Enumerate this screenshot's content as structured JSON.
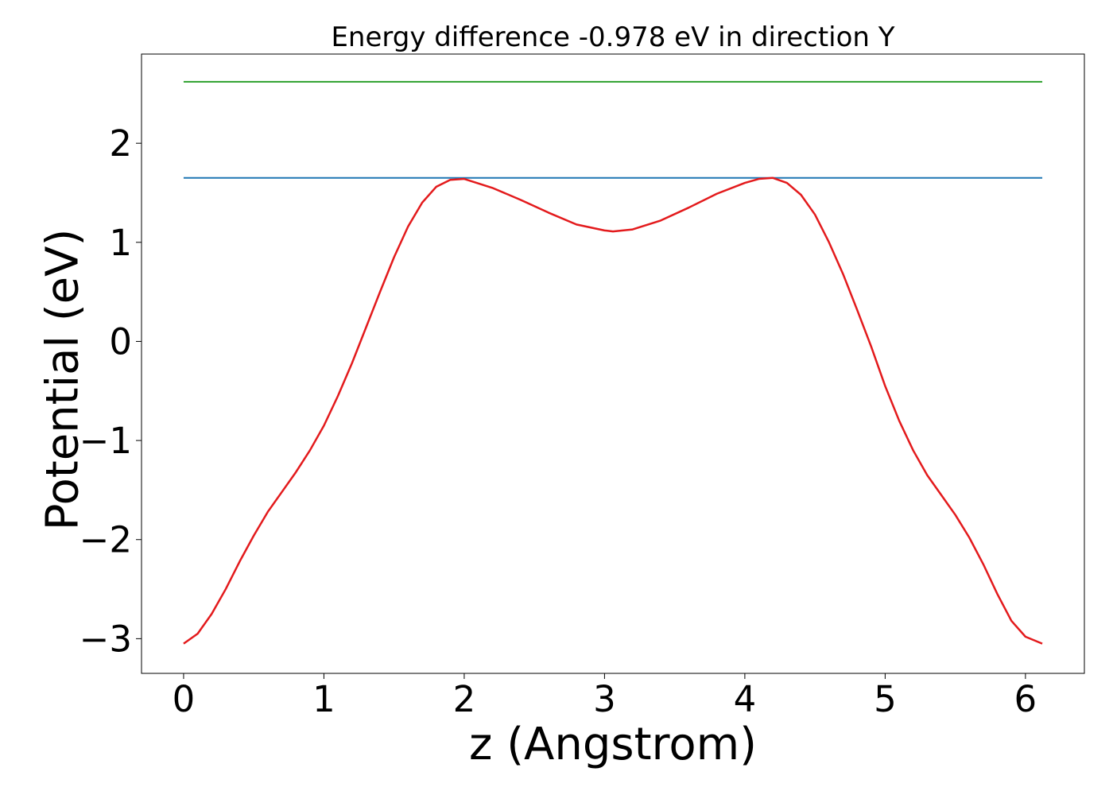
{
  "chart_data": {
    "type": "line",
    "title": "Energy difference -0.978 eV in direction Y",
    "xlabel": "z (Angstrom)",
    "ylabel": "Potential (eV)",
    "xlim": [
      -0.3,
      6.42
    ],
    "ylim": [
      -3.35,
      2.9
    ],
    "xticks": [
      0,
      1,
      2,
      3,
      4,
      5,
      6
    ],
    "yticks": [
      -3,
      -2,
      -1,
      0,
      1,
      2
    ],
    "xtick_labels": [
      "0",
      "1",
      "2",
      "3",
      "4",
      "5",
      "6"
    ],
    "ytick_labels": [
      "−3",
      "−2",
      "−1",
      "0",
      "1",
      "2"
    ],
    "grid": false,
    "series": [
      {
        "color": "#2ca02c",
        "x": [
          0,
          6.12
        ],
        "y": [
          2.62,
          2.62
        ]
      },
      {
        "color": "#1f77b4",
        "x": [
          0,
          6.12
        ],
        "y": [
          1.65,
          1.65
        ]
      },
      {
        "color": "#e31a1c",
        "x": [
          0,
          0.1,
          0.2,
          0.3,
          0.4,
          0.5,
          0.6,
          0.7,
          0.8,
          0.9,
          1.0,
          1.1,
          1.2,
          1.3,
          1.4,
          1.5,
          1.6,
          1.7,
          1.8,
          1.9,
          2.0,
          2.2,
          2.4,
          2.6,
          2.8,
          3.0,
          3.06,
          3.2,
          3.4,
          3.6,
          3.8,
          4.0,
          4.1,
          4.2,
          4.3,
          4.4,
          4.5,
          4.6,
          4.7,
          4.8,
          4.9,
          5.0,
          5.1,
          5.2,
          5.3,
          5.4,
          5.5,
          5.6,
          5.7,
          5.8,
          5.9,
          6.0,
          6.12
        ],
        "y": [
          -3.05,
          -2.95,
          -2.75,
          -2.5,
          -2.22,
          -1.96,
          -1.72,
          -1.52,
          -1.32,
          -1.1,
          -0.85,
          -0.55,
          -0.22,
          0.14,
          0.5,
          0.85,
          1.16,
          1.4,
          1.56,
          1.63,
          1.64,
          1.55,
          1.43,
          1.3,
          1.18,
          1.12,
          1.11,
          1.13,
          1.22,
          1.35,
          1.49,
          1.6,
          1.64,
          1.65,
          1.6,
          1.48,
          1.28,
          1.0,
          0.68,
          0.32,
          -0.05,
          -0.45,
          -0.8,
          -1.1,
          -1.35,
          -1.55,
          -1.75,
          -1.98,
          -2.25,
          -2.55,
          -2.82,
          -2.98,
          -3.05
        ]
      }
    ]
  }
}
